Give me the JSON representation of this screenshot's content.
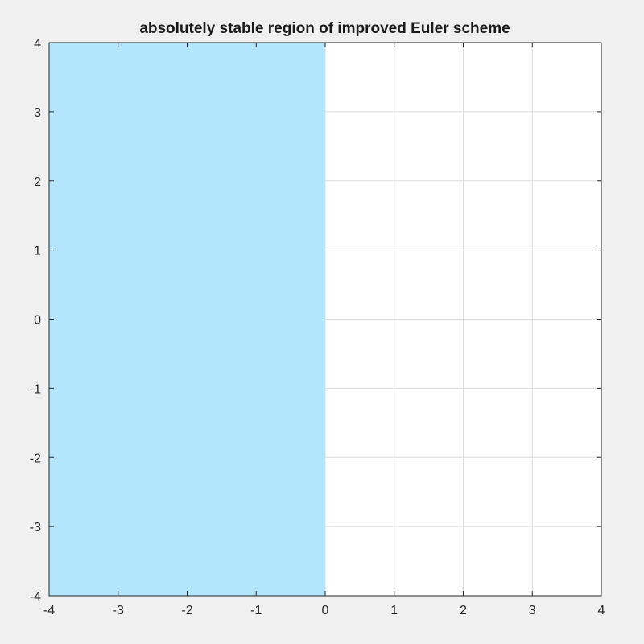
{
  "chart_data": {
    "type": "area",
    "title": "absolutely stable region of improved Euler scheme",
    "xlabel": "",
    "ylabel": "",
    "xlim": [
      -4,
      4
    ],
    "ylim": [
      -4,
      4
    ],
    "xticks": [
      -4,
      -3,
      -2,
      -1,
      0,
      1,
      2,
      3,
      4
    ],
    "yticks": [
      -4,
      -3,
      -2,
      -1,
      0,
      1,
      2,
      3,
      4
    ],
    "grid": true,
    "regions": [
      {
        "name": "",
        "x_range": [
          -4,
          0
        ],
        "y_range": [
          -4,
          4
        ],
        "color": "#b3e5fc"
      }
    ]
  },
  "colors": {
    "figure_background": "#f0f0f0",
    "axes_background": "#ffffff",
    "grid": "#dcdcdc",
    "axis": "#262626",
    "region_fill": "#b3e5fc"
  }
}
